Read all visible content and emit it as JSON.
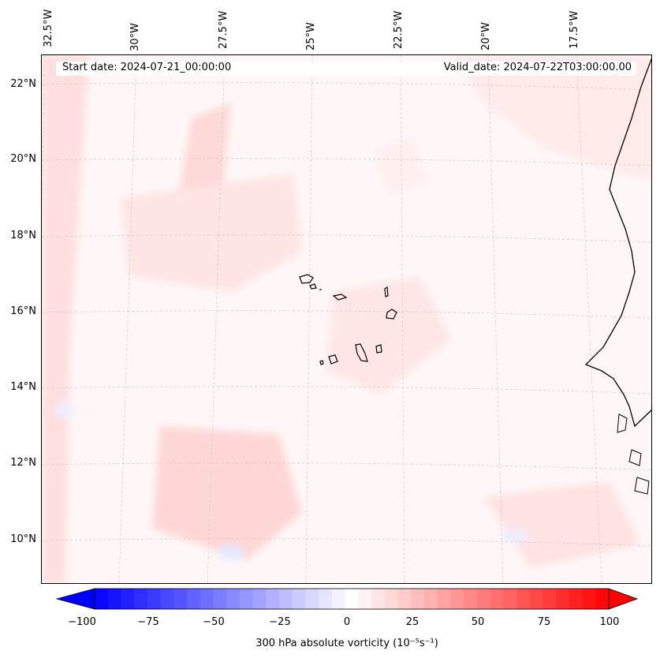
{
  "map": {
    "start_date": "Start date: 2024-07-21_00:00:00",
    "valid_date": "Valid_date: 2024-07-22T03:00:00.00",
    "lon_labels": [
      "32.5°W",
      "30°W",
      "27.5°W",
      "25°W",
      "22.5°W",
      "20°W",
      "17.5°W"
    ],
    "lat_labels": [
      "22°N",
      "20°N",
      "18°N",
      "16°N",
      "14°N",
      "12°N",
      "10°N"
    ],
    "colors": {
      "coast": "#000000",
      "grid": "#cccccc",
      "positive": "#ff0000",
      "negative": "#0000ff",
      "neutral": "#ffffff"
    }
  },
  "colorbar": {
    "label": "300 hPa absolute vorticity (10⁻⁵s⁻¹)",
    "min": -100,
    "max": 100,
    "ticks": [
      "−100",
      "−75",
      "−50",
      "−25",
      "0",
      "25",
      "50",
      "75",
      "100"
    ]
  }
}
